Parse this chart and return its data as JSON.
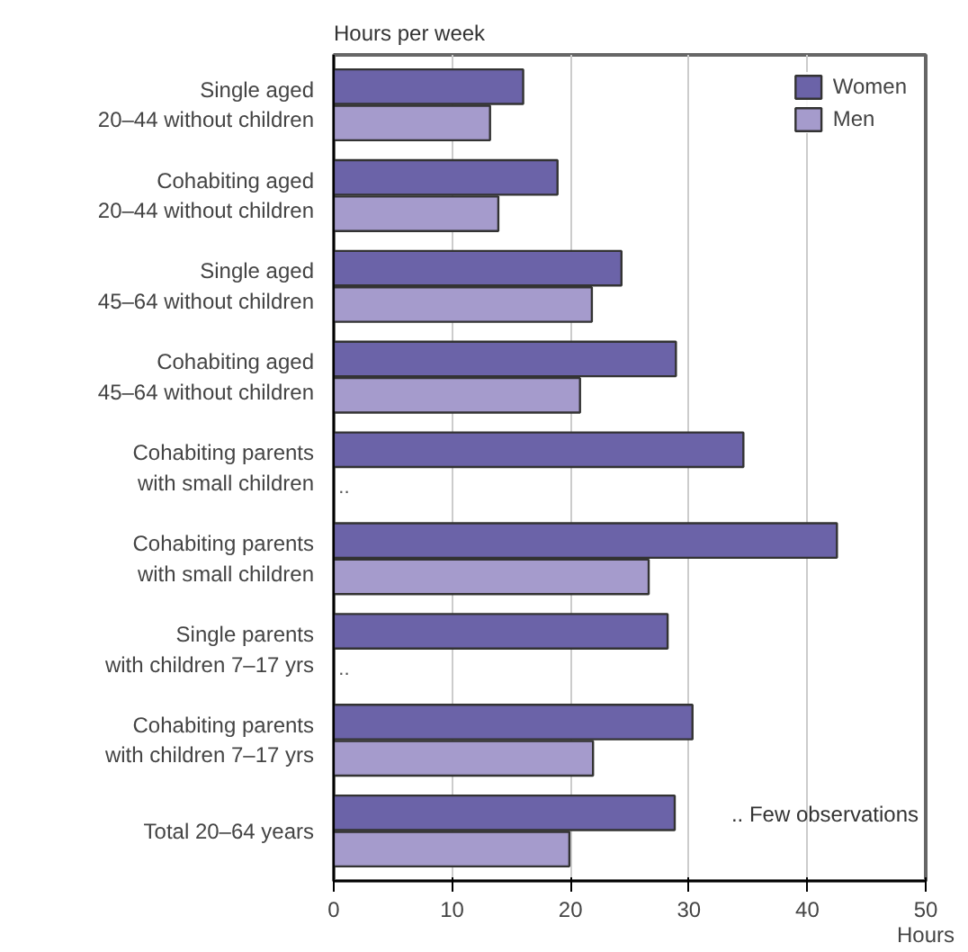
{
  "chart_data": {
    "type": "bar",
    "orientation": "horizontal",
    "title": "Hours per week",
    "xlabel": "Hours",
    "categories": [
      "Single aged\n20–44 without children",
      "Cohabiting aged\n20–44 without children",
      "Single aged\n45–64 without children",
      "Cohabiting aged\n45–64 without children",
      "Cohabiting parents\nwith small children",
      "Cohabiting parents\nwith small children",
      "Single parents\nwith children 7–17 yrs",
      "Cohabiting parents\nwith children 7–17 yrs",
      "Total 20–64 years"
    ],
    "series": [
      {
        "name": "Women",
        "color": "#6b63a8",
        "values": [
          16.0,
          18.9,
          24.3,
          28.9,
          34.6,
          42.5,
          28.2,
          30.3,
          28.8
        ]
      },
      {
        "name": "Men",
        "color": "#a59bcc",
        "values": [
          13.2,
          13.9,
          21.8,
          20.8,
          null,
          26.6,
          null,
          21.9,
          19.9
        ],
        "value_labels": [
          null,
          null,
          null,
          null,
          "..",
          null,
          "..",
          null,
          null
        ]
      }
    ],
    "xlim": [
      0,
      50
    ],
    "xticks": [
      0,
      10,
      20,
      30,
      40,
      50
    ],
    "grid": "x",
    "legend": "top right",
    "annotations": [
      ".. Few observations"
    ]
  }
}
